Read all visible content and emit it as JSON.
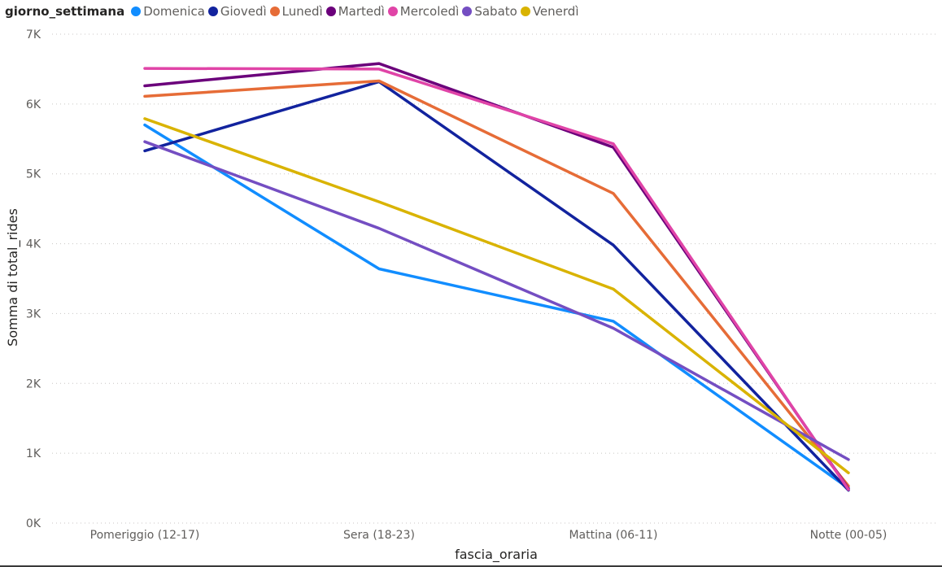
{
  "chart_data": {
    "type": "line",
    "legend_title": "giorno_settimana",
    "legend_position": "top-left",
    "categories": [
      "Pomeriggio (12-17)",
      "Sera (18-23)",
      "Mattina (06-11)",
      "Notte (00-05)"
    ],
    "xlabel": "fascia_oraria",
    "ylabel": "Somma di total_rides",
    "ylim": [
      0,
      7000
    ],
    "yticks": [
      0,
      1000,
      2000,
      3000,
      4000,
      5000,
      6000,
      7000
    ],
    "ytick_labels": [
      "0K",
      "1K",
      "2K",
      "3K",
      "4K",
      "5K",
      "6K",
      "7K"
    ],
    "grid": true,
    "series": [
      {
        "name": "Domenica",
        "color": "#118DFF",
        "values": [
          5700,
          3640,
          2890,
          500
        ]
      },
      {
        "name": "Giovedì",
        "color": "#12239E",
        "values": [
          5330,
          6320,
          3980,
          470
        ]
      },
      {
        "name": "Lunedì",
        "color": "#E66C37",
        "values": [
          6110,
          6330,
          4720,
          530
        ]
      },
      {
        "name": "Martedì",
        "color": "#6B007B",
        "values": [
          6260,
          6580,
          5380,
          490
        ]
      },
      {
        "name": "Mercoledì",
        "color": "#E044A7",
        "values": [
          6510,
          6500,
          5430,
          480
        ]
      },
      {
        "name": "Sabato",
        "color": "#744EC2",
        "values": [
          5460,
          4220,
          2790,
          910
        ]
      },
      {
        "name": "Venerdì",
        "color": "#D9B300",
        "values": [
          5790,
          4600,
          3350,
          720
        ]
      }
    ]
  }
}
